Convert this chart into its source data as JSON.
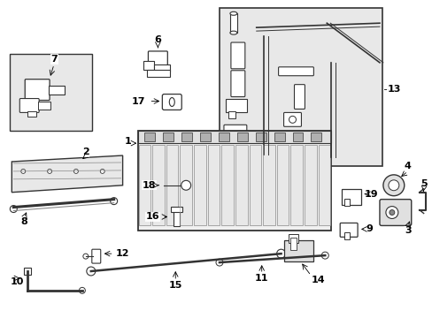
{
  "bg_color": "#ffffff",
  "line_color": "#333333",
  "part_color": "#dddddd",
  "inset_bg": "#e8e8e8",
  "figsize": [
    4.89,
    3.6
  ],
  "dpi": 100
}
